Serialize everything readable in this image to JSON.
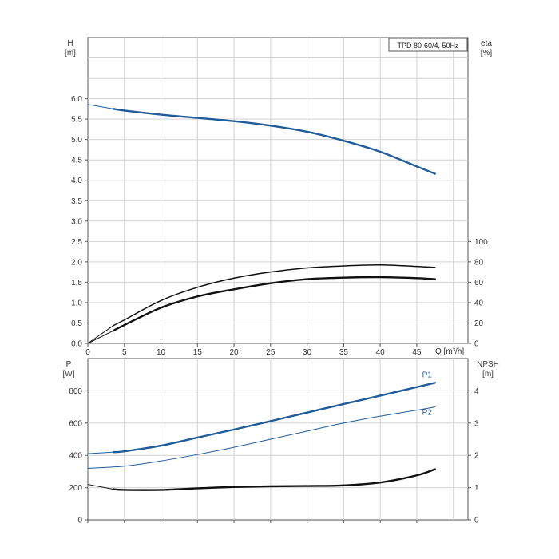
{
  "chart_data": [
    {
      "type": "line",
      "title": "TPD 80-60/4, 50Hz",
      "x_axis": {
        "label": "Q [m³/h]",
        "range": [
          0,
          52
        ],
        "ticks": [
          0,
          5,
          10,
          15,
          20,
          25,
          30,
          35,
          40,
          45
        ],
        "tick_labels": [
          "0",
          "5",
          "10",
          "15",
          "20",
          "25",
          "30",
          "35",
          "40",
          "45"
        ]
      },
      "y_axis_left": {
        "label_line1": "H",
        "label_line2": "[m]",
        "range": [
          0,
          7.5
        ],
        "ticks": [
          0,
          0.5,
          1.0,
          1.5,
          2.0,
          2.5,
          3.0,
          3.5,
          4.0,
          4.5,
          5.0,
          5.5,
          6.0
        ],
        "tick_labels": [
          "0.0",
          "0.5",
          "1.0",
          "1.5",
          "2.0",
          "2.5",
          "3.0",
          "3.5",
          "4.0",
          "4.5",
          "5.0",
          "5.5",
          "6.0"
        ]
      },
      "y_axis_right": {
        "label_line1": "eta",
        "label_line2": "[%]",
        "range": [
          0,
          300
        ],
        "ticks": [
          0,
          20,
          40,
          60,
          80,
          100
        ],
        "tick_labels": [
          "0",
          "20",
          "40",
          "60",
          "80",
          "100"
        ]
      },
      "grid": true,
      "series": [
        {
          "name": "",
          "axis": "left",
          "color": "#1f5c99",
          "style": "thick",
          "x": [
            3.5,
            5,
            10,
            15,
            20,
            25,
            30,
            35,
            40,
            45,
            47.5
          ],
          "y": [
            5.75,
            5.71,
            5.61,
            5.53,
            5.45,
            5.34,
            5.19,
            4.97,
            4.7,
            4.34,
            4.16
          ]
        },
        {
          "name": "",
          "axis": "left",
          "color": "#1f5c99",
          "style": "thin",
          "x": [
            0,
            3.5
          ],
          "y": [
            5.86,
            5.75
          ]
        },
        {
          "name": "",
          "axis": "right",
          "color": "#111111",
          "style": "medium",
          "x": [
            3.5,
            5,
            10,
            15,
            20,
            25,
            30,
            35,
            40,
            45,
            47.5
          ],
          "y": [
            17.5,
            23,
            42,
            55,
            64,
            70,
            74,
            76,
            77,
            75.5,
            74.5
          ]
        },
        {
          "name": "",
          "axis": "right",
          "color": "#111111",
          "style": "thin",
          "x": [
            0,
            3.5
          ],
          "y": [
            0,
            17.5
          ]
        },
        {
          "name": "",
          "axis": "right",
          "color": "#111111",
          "style": "thick",
          "x": [
            3.5,
            5,
            10,
            15,
            20,
            25,
            30,
            35,
            40,
            45,
            47.5
          ],
          "y": [
            12.5,
            18,
            35,
            46,
            53,
            59,
            63,
            64.5,
            65,
            64,
            63
          ]
        },
        {
          "name": "",
          "axis": "right",
          "color": "#111111",
          "style": "thin",
          "x": [
            0,
            3.5
          ],
          "y": [
            0,
            12.5
          ]
        }
      ]
    },
    {
      "type": "line",
      "x_axis": {
        "range": [
          0,
          52
        ],
        "ticks": [
          0,
          5,
          10,
          15,
          20,
          25,
          30,
          35,
          40,
          45
        ]
      },
      "y_axis_left": {
        "label_line1": "P",
        "label_line2": "[W]",
        "range": [
          0,
          1000
        ],
        "ticks": [
          0,
          200,
          400,
          600,
          800
        ],
        "tick_labels": [
          "0",
          "200",
          "400",
          "600",
          "800"
        ]
      },
      "y_axis_right": {
        "label_line1": "NPSH",
        "label_line2": "[m]",
        "range": [
          0,
          5
        ],
        "ticks": [
          0,
          1,
          2,
          3,
          4
        ],
        "tick_labels": [
          "0",
          "1",
          "2",
          "3",
          "4"
        ]
      },
      "grid": true,
      "series": [
        {
          "name": "P1",
          "axis": "left",
          "color": "#1f5c99",
          "style": "thick",
          "x": [
            3.5,
            5,
            10,
            15,
            20,
            25,
            30,
            35,
            40,
            45,
            47.5
          ],
          "y": [
            420,
            425,
            460,
            510,
            560,
            612,
            665,
            718,
            770,
            823,
            850
          ]
        },
        {
          "name": "",
          "axis": "left",
          "color": "#1f5c99",
          "style": "thin",
          "x": [
            0,
            3.5
          ],
          "y": [
            410,
            420
          ]
        },
        {
          "name": "P2",
          "axis": "left",
          "color": "#1f5c99",
          "style": "thin",
          "x": [
            0,
            5,
            10,
            15,
            20,
            25,
            30,
            35,
            40,
            45,
            47.5
          ],
          "y": [
            320,
            333,
            365,
            405,
            450,
            500,
            550,
            600,
            643,
            680,
            700
          ]
        },
        {
          "name": "",
          "axis": "right",
          "color": "#111111",
          "style": "thick",
          "x": [
            3.5,
            5,
            10,
            15,
            20,
            25,
            30,
            35,
            40,
            45,
            47.5
          ],
          "y": [
            0.95,
            0.93,
            0.93,
            0.98,
            1.02,
            1.04,
            1.05,
            1.07,
            1.16,
            1.38,
            1.57
          ]
        },
        {
          "name": "",
          "axis": "right",
          "color": "#111111",
          "style": "thin",
          "x": [
            0,
            3.5
          ],
          "y": [
            1.1,
            0.95
          ]
        }
      ]
    }
  ]
}
